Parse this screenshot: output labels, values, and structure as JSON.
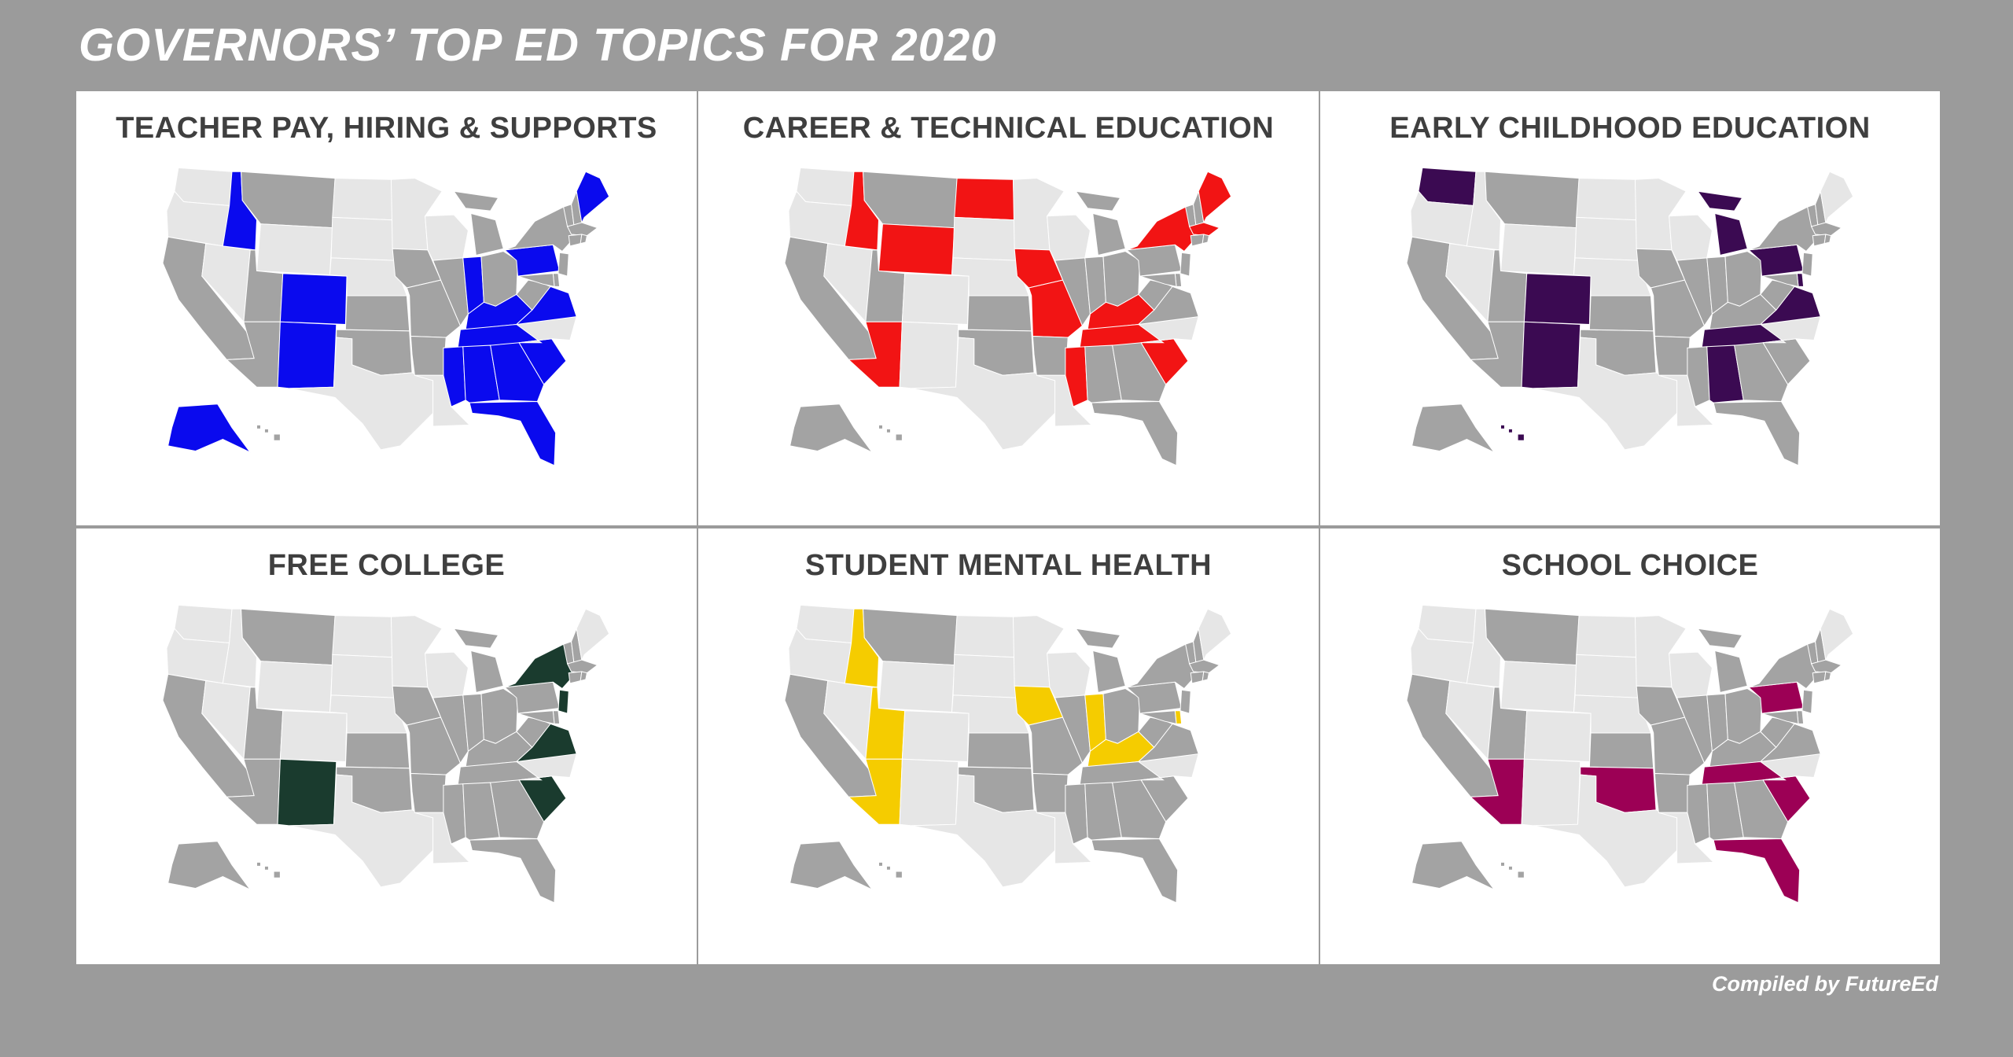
{
  "title": "GOVERNORS’ TOP ED TOPICS FOR 2020",
  "credit": "Compiled by FutureEd",
  "colors": {
    "background": "#9b9b9b",
    "panel": "#ffffff",
    "state_gray": "#a3a3a3",
    "state_light": "#e6e6e6",
    "border": "#ffffff"
  },
  "light_states": [
    "WA",
    "OR",
    "NV",
    "ID",
    "WY",
    "CO",
    "NE",
    "NM",
    "TX",
    "MN",
    "WI",
    "LA",
    "NC",
    "ME",
    "ND",
    "SD"
  ],
  "panels": [
    {
      "title": "TEACHER PAY, HIRING & SUPPORTS",
      "color": "#0a0aee",
      "states": [
        "ID",
        "CO",
        "NM",
        "IN",
        "KY",
        "TN",
        "VA",
        "MS",
        "AL",
        "GA",
        "SC",
        "FL",
        "PA",
        "ME",
        "AK"
      ]
    },
    {
      "title": "CAREER & TECHNICAL EDUCATION",
      "color": "#f21414",
      "states": [
        "ID",
        "WY",
        "AZ",
        "ND",
        "IA",
        "MO",
        "MS",
        "KY",
        "TN",
        "SC",
        "NY",
        "MA",
        "ME"
      ]
    },
    {
      "title": "EARLY CHILDHOOD EDUCATION",
      "color": "#3b0a52",
      "states": [
        "WA",
        "CO",
        "NM",
        "MI",
        "AL",
        "TN",
        "VA",
        "PA",
        "DE",
        "HI"
      ]
    },
    {
      "title": "FREE COLLEGE",
      "color": "#1a3b2e",
      "states": [
        "NM",
        "NY",
        "NJ",
        "VA",
        "SC"
      ]
    },
    {
      "title": "STUDENT MENTAL HEALTH",
      "color": "#f5cc00",
      "states": [
        "ID",
        "UT",
        "AZ",
        "IA",
        "IN",
        "KY",
        "DE"
      ]
    },
    {
      "title": "SCHOOL  CHOICE",
      "color": "#9c0055",
      "states": [
        "AZ",
        "OK",
        "TN",
        "SC",
        "FL",
        "PA"
      ]
    }
  ]
}
